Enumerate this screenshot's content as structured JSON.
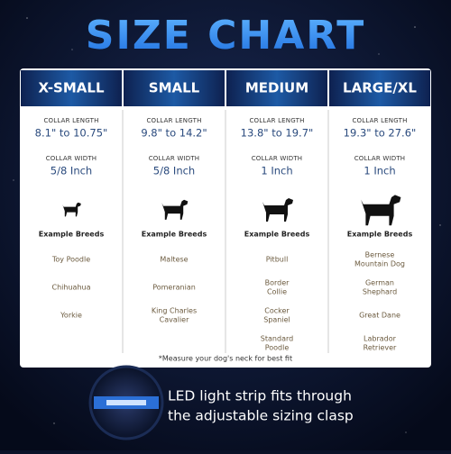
{
  "title": "SIZE CHART",
  "table": {
    "collar_length_label": "COLLAR LENGTH",
    "collar_width_label": "COLLAR WIDTH",
    "breeds_label": "Example Breeds",
    "columns": [
      {
        "name": "X-SMALL",
        "length": "8.1\" to 10.75\"",
        "width": "5/8 Inch",
        "breeds": [
          [
            "Toy Poodle"
          ],
          [
            "Chihuahua"
          ],
          [
            "Yorkie"
          ]
        ]
      },
      {
        "name": "SMALL",
        "length": "9.8\" to 14.2\"",
        "width": "5/8 Inch",
        "breeds": [
          [
            "Maltese"
          ],
          [
            "Pomeranian"
          ],
          [
            "King Charles",
            "Cavalier"
          ]
        ]
      },
      {
        "name": "MEDIUM",
        "length": "13.8\" to 19.7\"",
        "width": "1 Inch",
        "breeds": [
          [
            "Pitbull"
          ],
          [
            "Border",
            "Collie"
          ],
          [
            "Cocker",
            "Spaniel"
          ],
          [
            "Standard",
            "Poodle"
          ]
        ]
      },
      {
        "name": "LARGE/XL",
        "length": "19.3\" to 27.6\"",
        "width": "1 Inch",
        "breeds": [
          [
            "Bernese",
            "Mountain Dog"
          ],
          [
            "German",
            "Shephard"
          ],
          [
            "Great Dane"
          ],
          [
            "Labrador",
            "Retriever"
          ]
        ]
      }
    ],
    "footnote": "*Measure your dog's neck for best fit"
  },
  "feature": {
    "lines": [
      "LED light strip fits through",
      "the adjustable sizing clasp"
    ]
  }
}
